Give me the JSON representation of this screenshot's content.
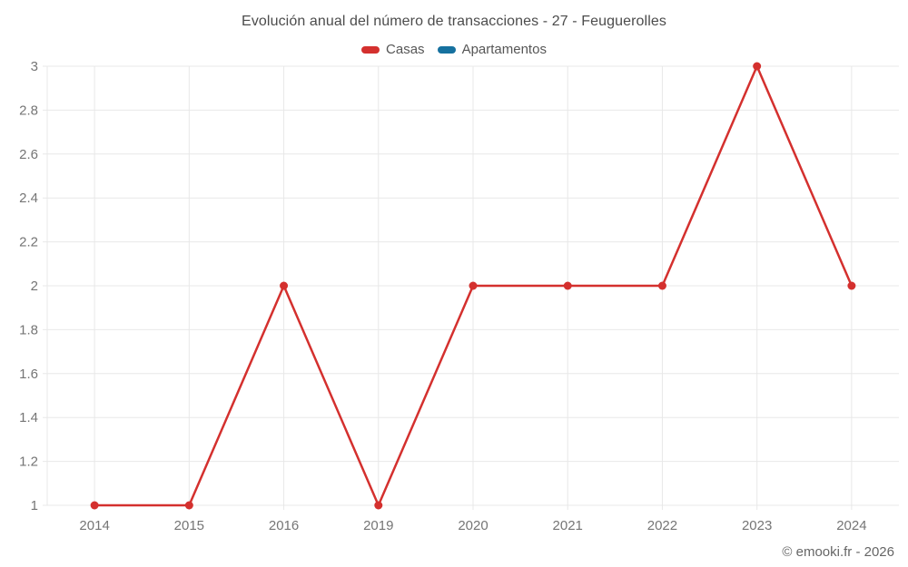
{
  "chart": {
    "title": "Evolución anual del número de transacciones - 27 - Feuguerolles",
    "footer": "© emooki.fr - 2026"
  },
  "chart_data": {
    "type": "line",
    "title": "Evolución anual del número de transacciones - 27 - Feuguerolles",
    "categories": [
      "2014",
      "2015",
      "2016",
      "2019",
      "2020",
      "2021",
      "2022",
      "2023",
      "2024"
    ],
    "series": [
      {
        "name": "Casas",
        "color": "#d4302e",
        "marker": "circle",
        "values": [
          1,
          1,
          2,
          1,
          2,
          2,
          2,
          3,
          2
        ]
      },
      {
        "name": "Apartamentos",
        "color": "#16719f",
        "marker": "circle",
        "values": []
      }
    ],
    "xlabel": "",
    "ylabel": "",
    "ylim": [
      1,
      3
    ],
    "yticks": [
      "1",
      "1.2",
      "1.4",
      "1.6",
      "1.8",
      "2",
      "2.2",
      "2.4",
      "2.6",
      "2.8",
      "3"
    ],
    "grid": true,
    "legend_position": "top",
    "gridline_color": "#e8e8e8",
    "tick_label_color": "#757575"
  }
}
